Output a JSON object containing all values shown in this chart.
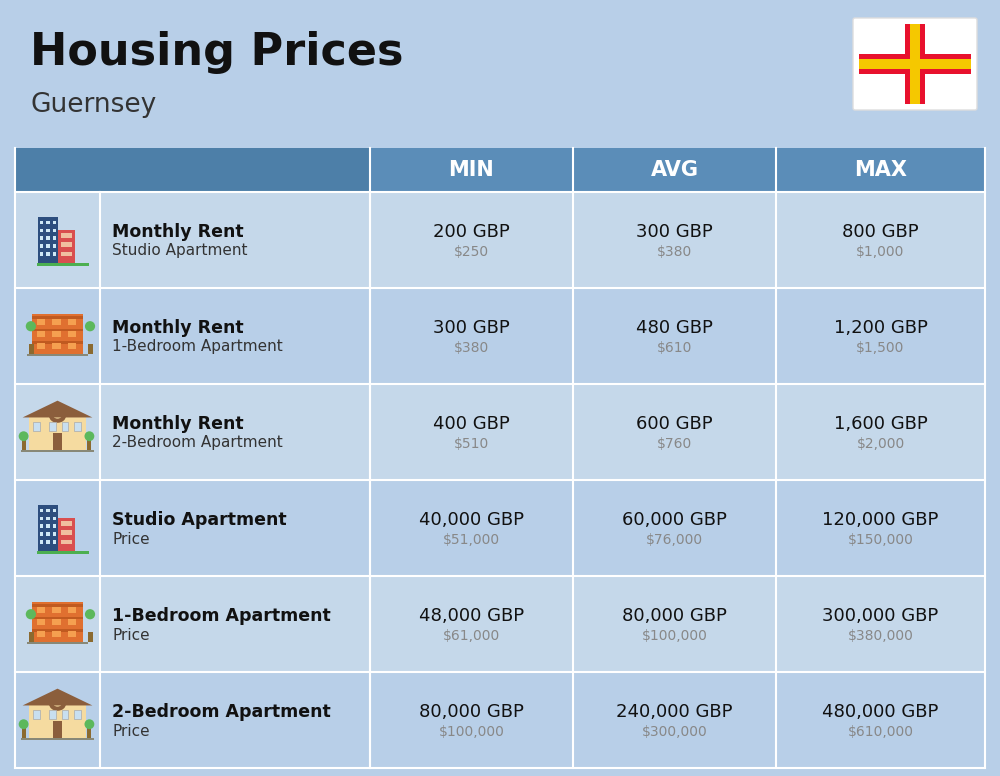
{
  "title": "Housing Prices",
  "subtitle": "Guernsey",
  "bg_color": "#b8cfe8",
  "header_bg": "#5b8db8",
  "header_text_color": "#ffffff",
  "row_bg_odd": "#c5d8ea",
  "row_bg_even": "#b8cfe8",
  "col_headers": [
    "MIN",
    "AVG",
    "MAX"
  ],
  "rows": [
    {
      "bold_label": "Monthly Rent",
      "sub_label": "Studio Apartment",
      "min_gbp": "200 GBP",
      "min_usd": "$250",
      "avg_gbp": "300 GBP",
      "avg_usd": "$380",
      "max_gbp": "800 GBP",
      "max_usd": "$1,000",
      "icon_type": "tall_blue"
    },
    {
      "bold_label": "Monthly Rent",
      "sub_label": "1-Bedroom Apartment",
      "min_gbp": "300 GBP",
      "min_usd": "$380",
      "avg_gbp": "480 GBP",
      "avg_usd": "$610",
      "max_gbp": "1,200 GBP",
      "max_usd": "$1,500",
      "icon_type": "wide_orange"
    },
    {
      "bold_label": "Monthly Rent",
      "sub_label": "2-Bedroom Apartment",
      "min_gbp": "400 GBP",
      "min_usd": "$510",
      "avg_gbp": "600 GBP",
      "avg_usd": "$760",
      "max_gbp": "1,600 GBP",
      "max_usd": "$2,000",
      "icon_type": "house_beige"
    },
    {
      "bold_label": "Studio Apartment",
      "sub_label": "Price",
      "min_gbp": "40,000 GBP",
      "min_usd": "$51,000",
      "avg_gbp": "60,000 GBP",
      "avg_usd": "$76,000",
      "max_gbp": "120,000 GBP",
      "max_usd": "$150,000",
      "icon_type": "tall_blue"
    },
    {
      "bold_label": "1-Bedroom Apartment",
      "sub_label": "Price",
      "min_gbp": "48,000 GBP",
      "min_usd": "$61,000",
      "avg_gbp": "80,000 GBP",
      "avg_usd": "$100,000",
      "max_gbp": "300,000 GBP",
      "max_usd": "$380,000",
      "icon_type": "wide_orange"
    },
    {
      "bold_label": "2-Bedroom Apartment",
      "sub_label": "Price",
      "min_gbp": "80,000 GBP",
      "min_usd": "$100,000",
      "avg_gbp": "240,000 GBP",
      "avg_usd": "$300,000",
      "max_gbp": "480,000 GBP",
      "max_usd": "$610,000",
      "icon_type": "house_beige"
    }
  ],
  "flag": {
    "white": "#ffffff",
    "red": "#e8112d",
    "yellow": "#f5c800",
    "border": "#dddddd"
  }
}
